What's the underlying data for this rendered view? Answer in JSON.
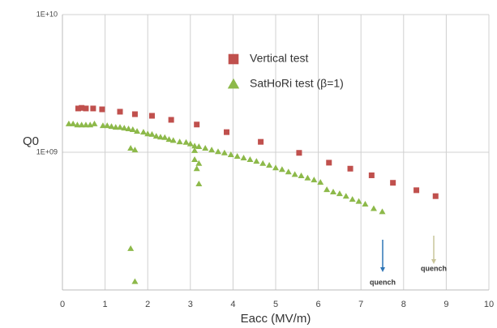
{
  "chart_data": {
    "type": "scatter",
    "x_label": "Eacc (MV/m)",
    "y_label": "Q0",
    "log_y": true,
    "grid": true,
    "xlim": [
      0,
      10
    ],
    "xticks": [
      0,
      1,
      2,
      3,
      4,
      5,
      6,
      7,
      8,
      9,
      10
    ],
    "ylim": [
      100000000,
      10000000000
    ],
    "yticks": [
      {
        "value": 1000000000,
        "label": "1E+09"
      },
      {
        "value": 10000000000,
        "label": "1E+10"
      }
    ],
    "annotations": [
      "quench",
      "quench"
    ],
    "series": [
      {
        "name": "Vertical test",
        "color": "#c0504d",
        "marker": "square",
        "x": [
          0.37,
          0.45,
          0.55,
          0.72,
          0.93,
          1.35,
          1.7,
          2.1,
          2.55,
          3.15,
          3.85,
          4.65,
          5.55,
          6.25,
          6.75,
          7.25,
          7.75,
          8.3,
          8.75
        ],
        "values": [
          2080000000,
          2100000000,
          2080000000,
          2080000000,
          2050000000,
          1970000000,
          1890000000,
          1840000000,
          1720000000,
          1590000000,
          1400000000,
          1190000000,
          990000000,
          840000000,
          760000000,
          680000000,
          600000000,
          530000000,
          480000000
        ]
      },
      {
        "name": "SatHoRi test (β=1)",
        "color": "#8db94a",
        "marker": "triangle",
        "x": [
          0.15,
          0.25,
          0.35,
          0.45,
          0.55,
          0.65,
          0.75,
          0.95,
          1.05,
          1.15,
          1.25,
          1.35,
          1.45,
          1.55,
          1.65,
          1.75,
          1.9,
          2.0,
          2.1,
          2.2,
          2.3,
          2.4,
          2.5,
          2.6,
          2.75,
          2.9,
          3.0,
          3.1,
          3.2,
          3.35,
          3.5,
          3.65,
          3.8,
          3.95,
          4.1,
          4.25,
          4.4,
          4.55,
          4.7,
          4.85,
          5.0,
          5.15,
          5.3,
          5.45,
          5.6,
          5.75,
          5.9,
          6.05,
          6.2,
          6.35,
          6.5,
          6.65,
          6.8,
          6.95,
          7.1,
          7.3,
          7.5,
          1.6,
          1.7,
          1.6,
          1.7,
          3.1,
          3.1,
          3.15,
          3.2,
          3.2
        ],
        "values": [
          1610000000,
          1610000000,
          1580000000,
          1580000000,
          1580000000,
          1580000000,
          1610000000,
          1560000000,
          1560000000,
          1540000000,
          1520000000,
          1520000000,
          1500000000,
          1480000000,
          1460000000,
          1420000000,
          1400000000,
          1360000000,
          1350000000,
          1310000000,
          1290000000,
          1280000000,
          1240000000,
          1220000000,
          1190000000,
          1180000000,
          1150000000,
          1110000000,
          1100000000,
          1070000000,
          1040000000,
          1010000000,
          990000000,
          960000000,
          935000000,
          910000000,
          885000000,
          860000000,
          830000000,
          805000000,
          770000000,
          750000000,
          720000000,
          690000000,
          675000000,
          650000000,
          630000000,
          605000000,
          535000000,
          515000000,
          500000000,
          480000000,
          455000000,
          440000000,
          420000000,
          390000000,
          370000000,
          1070000000,
          1040000000,
          200000000,
          115000000,
          1030000000,
          885000000,
          760000000,
          830000000,
          590000000
        ]
      }
    ]
  }
}
